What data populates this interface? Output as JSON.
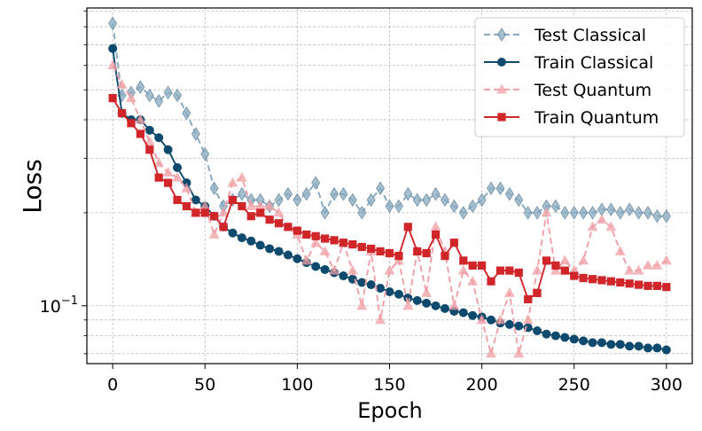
{
  "chart_data": {
    "type": "line",
    "xlabel": "Epoch",
    "ylabel": "Loss",
    "yscale": "log",
    "xlim": [
      -14,
      314
    ],
    "ylim": [
      0.065,
      0.92
    ],
    "grid": true,
    "legend_position": "top-right",
    "x_ticks": [
      0,
      50,
      100,
      150,
      200,
      250,
      300
    ],
    "x_tick_labels": [
      "0",
      "50",
      "100",
      "150",
      "200",
      "250",
      "300"
    ],
    "y_major_tick_value": 0.1,
    "y_major_tick_base": "10",
    "y_major_tick_exp": "−1",
    "y_minor_ticks": [
      0.07,
      0.08,
      0.09,
      0.2,
      0.3,
      0.4,
      0.5,
      0.6,
      0.7,
      0.8,
      0.9
    ],
    "x": [
      0,
      5,
      10,
      15,
      20,
      25,
      30,
      35,
      40,
      45,
      50,
      55,
      60,
      65,
      70,
      75,
      80,
      85,
      90,
      95,
      100,
      105,
      110,
      115,
      120,
      125,
      130,
      135,
      140,
      145,
      150,
      155,
      160,
      165,
      170,
      175,
      180,
      185,
      190,
      195,
      200,
      205,
      210,
      215,
      220,
      225,
      230,
      235,
      240,
      245,
      250,
      255,
      260,
      265,
      270,
      275,
      280,
      285,
      290,
      295,
      300
    ],
    "series": [
      {
        "name": "Test Classical",
        "color": "#88a9bf",
        "line": "dashed",
        "marker": "diamond",
        "values": [
          0.82,
          0.48,
          0.49,
          0.51,
          0.48,
          0.46,
          0.49,
          0.48,
          0.42,
          0.36,
          0.31,
          0.24,
          0.21,
          0.22,
          0.23,
          0.22,
          0.22,
          0.21,
          0.22,
          0.23,
          0.22,
          0.23,
          0.25,
          0.2,
          0.23,
          0.23,
          0.22,
          0.2,
          0.22,
          0.24,
          0.21,
          0.21,
          0.23,
          0.22,
          0.22,
          0.23,
          0.22,
          0.21,
          0.2,
          0.21,
          0.22,
          0.24,
          0.24,
          0.23,
          0.22,
          0.2,
          0.2,
          0.21,
          0.21,
          0.2,
          0.2,
          0.2,
          0.2,
          0.205,
          0.205,
          0.2,
          0.205,
          0.2,
          0.2,
          0.195,
          0.195
        ]
      },
      {
        "name": "Train Classical",
        "color": "#0e4a6e",
        "line": "solid",
        "marker": "circle",
        "values": [
          0.68,
          0.42,
          0.4,
          0.4,
          0.37,
          0.35,
          0.32,
          0.28,
          0.25,
          0.22,
          0.21,
          0.195,
          0.18,
          0.172,
          0.166,
          0.162,
          0.157,
          0.153,
          0.15,
          0.146,
          0.142,
          0.138,
          0.134,
          0.131,
          0.128,
          0.125,
          0.122,
          0.119,
          0.117,
          0.114,
          0.111,
          0.109,
          0.106,
          0.104,
          0.102,
          0.1,
          0.098,
          0.096,
          0.095,
          0.093,
          0.092,
          0.09,
          0.088,
          0.087,
          0.086,
          0.085,
          0.083,
          0.081,
          0.08,
          0.079,
          0.078,
          0.077,
          0.076,
          0.076,
          0.075,
          0.075,
          0.074,
          0.074,
          0.073,
          0.073,
          0.072
        ]
      },
      {
        "name": "Test Quantum",
        "color": "#f0a0a6",
        "line": "dashed",
        "marker": "triangle",
        "values": [
          0.6,
          0.52,
          0.47,
          0.4,
          0.34,
          0.29,
          0.27,
          0.26,
          0.24,
          0.2,
          0.21,
          0.17,
          0.2,
          0.25,
          0.26,
          0.21,
          0.21,
          0.21,
          0.2,
          0.18,
          0.17,
          0.14,
          0.16,
          0.15,
          0.13,
          0.16,
          0.13,
          0.1,
          0.15,
          0.09,
          0.13,
          0.14,
          0.1,
          0.15,
          0.11,
          0.18,
          0.15,
          0.1,
          0.13,
          0.12,
          0.09,
          0.07,
          0.09,
          0.11,
          0.07,
          0.09,
          0.13,
          0.2,
          0.13,
          0.14,
          0.13,
          0.14,
          0.18,
          0.19,
          0.18,
          0.15,
          0.13,
          0.13,
          0.135,
          0.135,
          0.14
        ]
      },
      {
        "name": "Train Quantum",
        "color": "#d0262a",
        "line": "solid",
        "marker": "square",
        "values": [
          0.47,
          0.42,
          0.39,
          0.36,
          0.32,
          0.26,
          0.25,
          0.22,
          0.21,
          0.2,
          0.2,
          0.195,
          0.18,
          0.22,
          0.21,
          0.195,
          0.2,
          0.19,
          0.185,
          0.18,
          0.175,
          0.17,
          0.168,
          0.165,
          0.163,
          0.16,
          0.158,
          0.155,
          0.153,
          0.15,
          0.148,
          0.145,
          0.18,
          0.15,
          0.148,
          0.17,
          0.145,
          0.16,
          0.14,
          0.135,
          0.135,
          0.12,
          0.13,
          0.13,
          0.128,
          0.105,
          0.11,
          0.14,
          0.135,
          0.13,
          0.125,
          0.123,
          0.122,
          0.121,
          0.12,
          0.119,
          0.118,
          0.117,
          0.116,
          0.116,
          0.115
        ]
      }
    ]
  }
}
